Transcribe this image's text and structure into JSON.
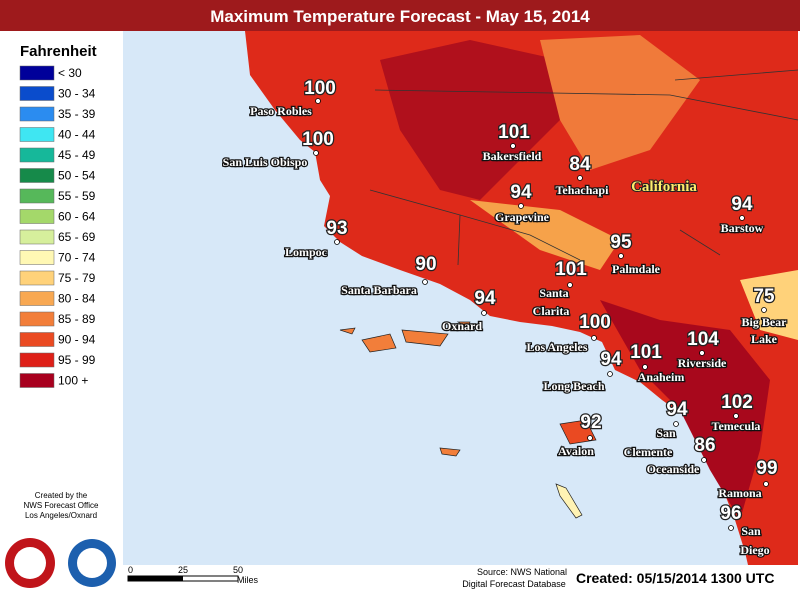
{
  "header": {
    "title": "Maximum Temperature Forecast - May 15, 2014"
  },
  "legend": {
    "title": "Fahrenheit",
    "items": [
      {
        "label": "< 30",
        "color": "#00009a"
      },
      {
        "label": "30 - 34",
        "color": "#0a4ccc"
      },
      {
        "label": "35 - 39",
        "color": "#2b8cf0"
      },
      {
        "label": "40 - 44",
        "color": "#3fe6f2"
      },
      {
        "label": "45 - 49",
        "color": "#16b89a"
      },
      {
        "label": "50 - 54",
        "color": "#168a4a"
      },
      {
        "label": "55 - 59",
        "color": "#56b85a"
      },
      {
        "label": "60 - 64",
        "color": "#a4d86a"
      },
      {
        "label": "65 - 69",
        "color": "#d6ef9c"
      },
      {
        "label": "70 - 74",
        "color": "#fff8b4"
      },
      {
        "label": "75 - 79",
        "color": "#ffd27a"
      },
      {
        "label": "80 - 84",
        "color": "#f8a852"
      },
      {
        "label": "85 - 89",
        "color": "#f27e3a"
      },
      {
        "label": "90 - 94",
        "color": "#ea4a22"
      },
      {
        "label": "95 - 99",
        "color": "#de2018"
      },
      {
        "label": "100 +",
        "color": "#a8001e"
      }
    ]
  },
  "map": {
    "region_label": "California",
    "cities": [
      {
        "name": [
          "Paso Robles"
        ],
        "temp": 100
      },
      {
        "name": [
          "San Luis Obispo"
        ],
        "temp": 100
      },
      {
        "name": [
          "Bakersfield"
        ],
        "temp": 101
      },
      {
        "name": [
          "Tehachapi"
        ],
        "temp": 84
      },
      {
        "name": [
          "Grapevine"
        ],
        "temp": 94
      },
      {
        "name": [
          "Barstow"
        ],
        "temp": 94
      },
      {
        "name": [
          "Lompoc"
        ],
        "temp": 93
      },
      {
        "name": [
          "Palmdale"
        ],
        "temp": 95
      },
      {
        "name": [
          "Santa Barbara"
        ],
        "temp": 90
      },
      {
        "name": [
          "Santa",
          "Clarita"
        ],
        "temp": 101
      },
      {
        "name": [
          "Oxnard"
        ],
        "temp": 94
      },
      {
        "name": [
          "Big Bear",
          "Lake"
        ],
        "temp": 75
      },
      {
        "name": [
          "Los Angeles"
        ],
        "temp": 100
      },
      {
        "name": [
          "Riverside"
        ],
        "temp": 104
      },
      {
        "name": [
          "Long Beach"
        ],
        "temp": 94
      },
      {
        "name": [
          "Anaheim"
        ],
        "temp": 101
      },
      {
        "name": [
          "Temecula"
        ],
        "temp": 102
      },
      {
        "name": [
          "San",
          "Clemente"
        ],
        "temp": 94
      },
      {
        "name": [
          "Avalon"
        ],
        "temp": 92
      },
      {
        "name": [
          "Oceanside"
        ],
        "temp": 86
      },
      {
        "name": [
          "Ramona"
        ],
        "temp": 99
      },
      {
        "name": [
          "San",
          "Diego"
        ],
        "temp": 96
      }
    ]
  },
  "footer": {
    "credit": [
      "Created by the",
      "NWS Forecast Office",
      "Los Angeles/Oxnard"
    ],
    "scale": {
      "ticks": [
        0,
        25,
        50
      ],
      "unit": "Miles"
    },
    "source": [
      "Source: NWS National",
      "Digital Forecast Database"
    ],
    "created": "Created: 05/15/2014 1300 UTC"
  }
}
